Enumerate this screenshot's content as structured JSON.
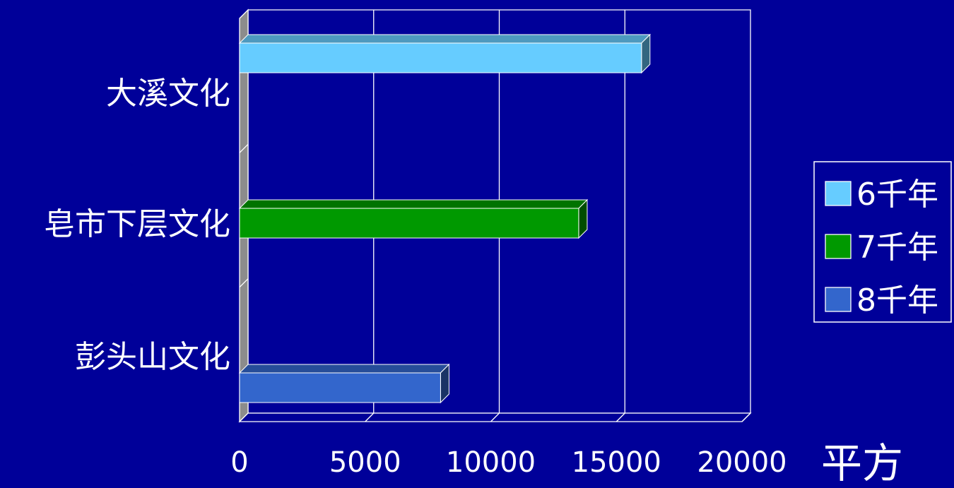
{
  "chart_data": {
    "type": "bar",
    "orientation": "horizontal",
    "style": "3d",
    "categories": [
      "大溪文化",
      "皂市下层文化",
      "彭头山文化"
    ],
    "series": [
      {
        "name": "6千年",
        "color": "#66CCFF",
        "category": "大溪文化",
        "value": 16000
      },
      {
        "name": "7千年",
        "color": "#009900",
        "category": "皂市下层文化",
        "value": 13500
      },
      {
        "name": "8千年",
        "color": "#3366CC",
        "category": "彭头山文化",
        "value": 8000
      }
    ],
    "xticks": [
      "0",
      "5000",
      "10000",
      "15000",
      "20000"
    ],
    "xlim": [
      0,
      20000
    ],
    "xlabel": "平方",
    "grid": true,
    "legend_position": "right",
    "background_color": "#000099"
  }
}
